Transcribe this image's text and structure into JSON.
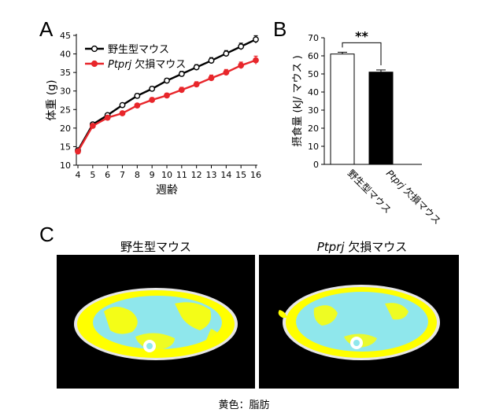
{
  "panels": {
    "a": "A",
    "b": "B",
    "c": "C"
  },
  "chart_data": [
    {
      "type": "line",
      "title": "",
      "xlabel": "週齢",
      "ylabel": "体重 (g)",
      "ylim": [
        10,
        45
      ],
      "xlim": [
        4,
        16
      ],
      "x": [
        4,
        5,
        6,
        7,
        8,
        9,
        10,
        11,
        12,
        13,
        14,
        15,
        16
      ],
      "yticks": [
        10,
        15,
        20,
        25,
        30,
        35,
        40,
        45
      ],
      "legend": "top-left",
      "series": [
        {
          "name": "野生型マウス",
          "name_italic": "",
          "color": "#000000",
          "marker": "open-circle",
          "values": [
            14.0,
            21.0,
            23.5,
            26.2,
            28.7,
            30.6,
            32.8,
            34.6,
            36.4,
            38.2,
            40.1,
            42.0,
            43.9
          ],
          "errors": [
            0.4,
            0.4,
            0.5,
            0.5,
            0.6,
            0.6,
            0.6,
            0.7,
            0.7,
            0.8,
            0.8,
            0.9,
            1.0
          ]
        },
        {
          "name": "欠損マウス",
          "name_italic": "Ptprj",
          "color": "#e8262b",
          "marker": "filled-circle",
          "values": [
            13.7,
            20.6,
            22.8,
            24.0,
            26.1,
            27.6,
            28.8,
            30.3,
            31.8,
            33.5,
            35.0,
            36.9,
            38.3
          ],
          "errors": [
            0.4,
            0.4,
            0.5,
            0.5,
            0.5,
            0.6,
            0.6,
            0.7,
            0.7,
            0.8,
            0.8,
            0.9,
            1.1
          ]
        }
      ]
    },
    {
      "type": "bar",
      "title": "",
      "xlabel": "",
      "ylabel": "摂食量 (kJ/ マウス )",
      "ylim": [
        0,
        70
      ],
      "yticks": [
        0,
        10,
        20,
        30,
        40,
        50,
        60,
        70
      ],
      "categories": [
        "野生型マウス",
        "欠損マウス"
      ],
      "category_italic": [
        "",
        "Ptprj"
      ],
      "values": [
        61,
        51
      ],
      "errors": [
        1.0,
        1.2
      ],
      "fills": [
        "#ffffff",
        "#000000"
      ],
      "significance": "**"
    }
  ],
  "figure_c": {
    "left_title": "野生型マウス",
    "right_title_italic": "Ptprj",
    "right_title": " 欠損マウス",
    "caption": "黄色：脂肪",
    "colors": {
      "fat": "#ffff00",
      "tissue": "#8fe7ec",
      "background": "#000000",
      "outline": "#e8e8e8"
    }
  }
}
